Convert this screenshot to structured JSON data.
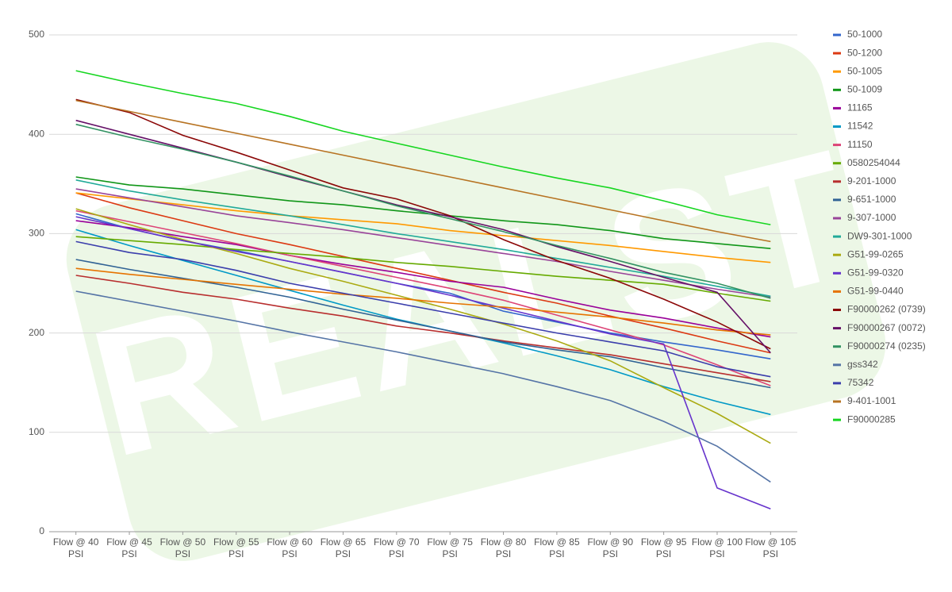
{
  "chart_data": {
    "type": "line",
    "watermark": "REALST",
    "categories": [
      "Flow @ 40 PSI",
      "Flow @ 45 PSI",
      "Flow @ 50 PSI",
      "Flow @ 55 PSI",
      "Flow @ 60 PSI",
      "Flow @ 65 PSI",
      "Flow @ 70 PSI",
      "Flow @ 75 PSI",
      "Flow @ 80 PSI",
      "Flow @ 85 PSI",
      "Flow @ 90 PSI",
      "Flow @ 95 PSI",
      "Flow @ 100 PSI",
      "Flow @ 105 PSI"
    ],
    "ylim": [
      0,
      500
    ],
    "yticks": [
      0,
      100,
      200,
      300,
      400,
      500
    ],
    "grid": true,
    "legend": "right",
    "series": [
      {
        "name": "50-1000",
        "color": "#3366cc",
        "values": [
          320,
          305,
          293,
          283,
          272,
          261,
          250,
          240,
          222,
          211,
          200,
          191,
          183,
          174
        ]
      },
      {
        "name": "50-1200",
        "color": "#dc3912",
        "values": [
          341,
          326,
          313,
          300,
          289,
          277,
          265,
          253,
          241,
          230,
          217,
          205,
          192,
          180
        ]
      },
      {
        "name": "50-1005",
        "color": "#ff9900",
        "values": [
          341,
          335,
          329,
          323,
          318,
          314,
          310,
          303,
          298,
          293,
          288,
          282,
          276,
          271
        ]
      },
      {
        "name": "50-1009",
        "color": "#109618",
        "values": [
          357,
          349,
          345,
          339,
          333,
          329,
          323,
          318,
          313,
          309,
          303,
          295,
          290,
          285
        ]
      },
      {
        "name": "11165",
        "color": "#990099",
        "values": [
          313,
          306,
          297,
          289,
          278,
          269,
          261,
          252,
          246,
          234,
          223,
          215,
          205,
          196
        ]
      },
      {
        "name": "11542",
        "color": "#0099c6",
        "values": [
          304,
          288,
          273,
          258,
          243,
          228,
          214,
          202,
          190,
          177,
          163,
          146,
          131,
          118
        ]
      },
      {
        "name": "11150",
        "color": "#dd4477",
        "values": [
          323,
          312,
          301,
          290,
          278,
          267,
          256,
          245,
          233,
          218,
          203,
          188,
          168,
          147
        ]
      },
      {
        "name": "0580254044",
        "color": "#66aa00",
        "values": [
          297,
          293,
          289,
          284,
          280,
          276,
          271,
          267,
          262,
          257,
          253,
          249,
          240,
          232
        ]
      },
      {
        "name": "9-201-1000",
        "color": "#b82e2e",
        "values": [
          258,
          250,
          241,
          234,
          225,
          217,
          207,
          200,
          192,
          185,
          178,
          169,
          160,
          151
        ]
      },
      {
        "name": "9-651-1000",
        "color": "#316395",
        "values": [
          274,
          264,
          255,
          246,
          236,
          224,
          213,
          202,
          191,
          183,
          176,
          165,
          155,
          145
        ]
      },
      {
        "name": "9-307-1000",
        "color": "#994499",
        "values": [
          345,
          336,
          327,
          318,
          311,
          304,
          296,
          288,
          280,
          272,
          262,
          253,
          244,
          236
        ]
      },
      {
        "name": "DW9-301-1000",
        "color": "#22aa99",
        "values": [
          354,
          343,
          334,
          326,
          318,
          309,
          300,
          292,
          284,
          275,
          266,
          257,
          247,
          237
        ]
      },
      {
        "name": "G51-99-0265",
        "color": "#aaaa11",
        "values": [
          325,
          309,
          294,
          280,
          265,
          252,
          238,
          224,
          209,
          192,
          172,
          145,
          119,
          89
        ]
      },
      {
        "name": "G51-99-0320",
        "color": "#6633cc",
        "values": [
          317,
          305,
          293,
          282,
          272,
          261,
          250,
          238,
          225,
          212,
          199,
          189,
          44,
          23
        ]
      },
      {
        "name": "G51-99-0440",
        "color": "#e67300",
        "values": [
          265,
          259,
          254,
          249,
          244,
          239,
          235,
          230,
          226,
          221,
          216,
          210,
          203,
          198
        ]
      },
      {
        "name": "F90000262 (0739)",
        "color": "#8b0707",
        "values": [
          435,
          422,
          399,
          382,
          364,
          346,
          335,
          318,
          294,
          273,
          255,
          234,
          211,
          184
        ]
      },
      {
        "name": "F90000267 (0072)",
        "color": "#651067",
        "values": [
          414,
          400,
          386,
          372,
          357,
          343,
          329,
          317,
          304,
          287,
          272,
          256,
          241,
          180
        ]
      },
      {
        "name": "F90000274 (0235)",
        "color": "#329262",
        "values": [
          410,
          397,
          385,
          372,
          358,
          343,
          328,
          315,
          302,
          288,
          275,
          261,
          250,
          235
        ]
      },
      {
        "name": "gss342",
        "color": "#5574a6",
        "values": [
          242,
          232,
          222,
          212,
          201,
          191,
          181,
          170,
          159,
          146,
          132,
          111,
          86,
          50
        ]
      },
      {
        "name": "75342",
        "color": "#3b3eac",
        "values": [
          292,
          281,
          274,
          263,
          250,
          240,
          230,
          220,
          210,
          200,
          191,
          182,
          166,
          156
        ]
      },
      {
        "name": "9-401-1001",
        "color": "#b77322",
        "values": [
          434,
          423,
          412,
          401,
          390,
          379,
          368,
          357,
          346,
          335,
          324,
          313,
          302,
          292
        ]
      },
      {
        "name": "F90000285",
        "color": "#16d620",
        "values": [
          464,
          452,
          441,
          431,
          418,
          403,
          391,
          379,
          367,
          356,
          346,
          333,
          319,
          309
        ]
      }
    ]
  }
}
